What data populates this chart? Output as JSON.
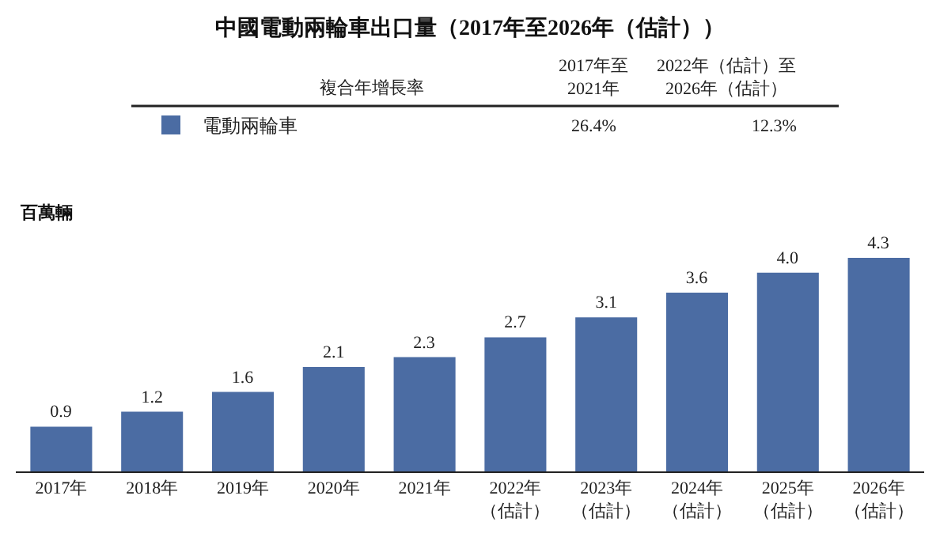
{
  "chart_data": {
    "type": "bar",
    "title": "中國電動兩輪車出口量（2017年至2026年（估計））",
    "ylabel": "百萬輛",
    "categories": [
      "2017年",
      "2018年",
      "2019年",
      "2020年",
      "2021年",
      "2022年（估計）",
      "2023年（估計）",
      "2024年（估計）",
      "2025年（估計）",
      "2026年（估計）"
    ],
    "series": [
      {
        "name": "電動兩輪車",
        "color": "#4b6ca3",
        "values": [
          0.9,
          1.2,
          1.6,
          2.1,
          2.3,
          2.7,
          3.1,
          3.6,
          4.0,
          4.3
        ],
        "value_labels": [
          "0.9",
          "1.2",
          "1.6",
          "2.1",
          "2.3",
          "2.7",
          "3.1",
          "3.6",
          "4.0",
          "4.3"
        ]
      }
    ],
    "annotations": [
      "複合年增長率",
      "2017年至\n2021年",
      "2022年（估計）至\n2026年（估計）",
      "26.4%",
      "12.3%"
    ],
    "tick_labels": "x",
    "legend": "top left"
  }
}
